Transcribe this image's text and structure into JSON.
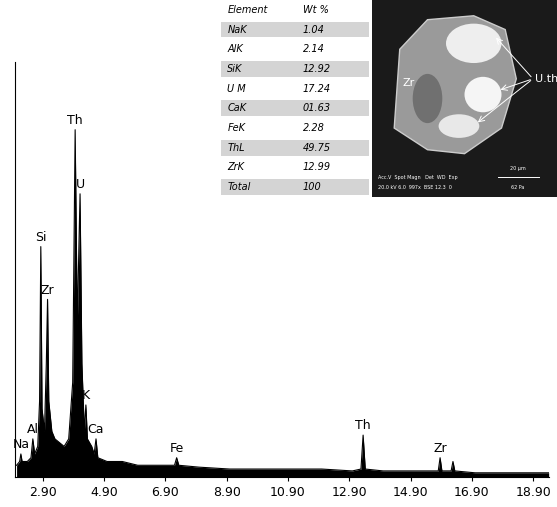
{
  "chart_data": {
    "type": "area",
    "x": [
      2.05,
      2.15,
      2.19,
      2.23,
      2.4,
      2.52,
      2.58,
      2.64,
      2.74,
      2.8,
      2.84,
      2.88,
      2.96,
      3.02,
      3.06,
      3.1,
      3.2,
      3.3,
      3.45,
      3.6,
      3.75,
      3.88,
      3.96,
      4.03,
      4.08,
      4.12,
      4.18,
      4.26,
      4.31,
      4.36,
      4.5,
      4.58,
      4.64,
      4.7,
      5.0,
      5.5,
      6.0,
      6.6,
      7.2,
      7.27,
      7.34,
      8.0,
      9.0,
      10.0,
      11.0,
      12.0,
      13.0,
      13.28,
      13.35,
      13.42,
      14.0,
      15.0,
      15.8,
      15.86,
      15.92,
      16.22,
      16.28,
      16.34,
      17.0,
      18.0,
      19.4
    ],
    "values": [
      3,
      4,
      6,
      4,
      4,
      5,
      10,
      6,
      8,
      20,
      61,
      18,
      12,
      30,
      47,
      20,
      12,
      10,
      9,
      8,
      10,
      25,
      92,
      40,
      60,
      75,
      30,
      12,
      19,
      10,
      8,
      6,
      10,
      5,
      4,
      4,
      3,
      3,
      3,
      5,
      3,
      2.5,
      2,
      2,
      2,
      2,
      1.5,
      2,
      11,
      2,
      1.5,
      1.5,
      1.5,
      5,
      1.5,
      1.5,
      4,
      1.5,
      1,
      1,
      1
    ],
    "color": "#000000",
    "xlim": [
      2.0,
      19.4
    ],
    "xticks": [
      {
        "value": 2.9,
        "label": "2.90"
      },
      {
        "value": 4.9,
        "label": "4.90"
      },
      {
        "value": 6.9,
        "label": "6.90"
      },
      {
        "value": 8.9,
        "label": "8.90"
      },
      {
        "value": 10.9,
        "label": "10.90"
      },
      {
        "value": 12.9,
        "label": "12.90"
      },
      {
        "value": 14.9,
        "label": "14.90"
      },
      {
        "value": 16.9,
        "label": "16.90"
      },
      {
        "value": 18.9,
        "label": "18.90"
      }
    ],
    "ylim": [
      0,
      110
    ],
    "tick_labels": "x",
    "annotations": [
      {
        "text": "Na",
        "x": 2.19,
        "y": 6
      },
      {
        "text": "Al",
        "x": 2.58,
        "y": 10
      },
      {
        "text": "Si",
        "x": 2.84,
        "y": 61
      },
      {
        "text": "Zr",
        "x": 3.06,
        "y": 47
      },
      {
        "text": "Th",
        "x": 3.96,
        "y": 92
      },
      {
        "text": "U",
        "x": 4.12,
        "y": 75
      },
      {
        "text": "K",
        "x": 4.31,
        "y": 19
      },
      {
        "text": "Ca",
        "x": 4.64,
        "y": 10
      },
      {
        "text": "Fe",
        "x": 7.27,
        "y": 5
      },
      {
        "text": "Th",
        "x": 13.35,
        "y": 11
      },
      {
        "text": "Zr",
        "x": 15.86,
        "y": 5
      }
    ]
  },
  "table": {
    "header": [
      "Element",
      "Wt %"
    ],
    "rows": [
      [
        "NaK",
        "1.04"
      ],
      [
        "AlK",
        "2.14"
      ],
      [
        "SiK",
        "12.92"
      ],
      [
        "U M",
        "17.24"
      ],
      [
        "CaK",
        "01.63"
      ],
      [
        "FeK",
        "2.28"
      ],
      [
        "ThL",
        "49.75"
      ],
      [
        "ZrK",
        "12.99"
      ],
      [
        "Total",
        "100"
      ]
    ]
  },
  "image": {
    "labels": [
      "Zr",
      "U.th"
    ],
    "footer": [
      "Acc.V  Spot Magn   Det  WD  Exp",
      "20.0 kV 6.0  997x  BSE 12.3  0",
      "20 µm",
      "62 Pa"
    ]
  }
}
